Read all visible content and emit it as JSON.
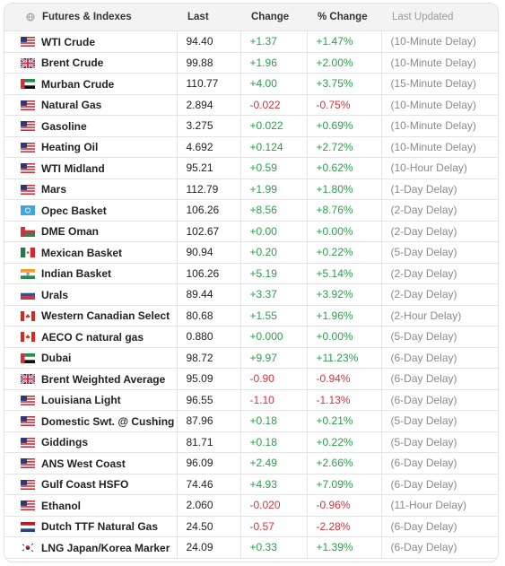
{
  "table": {
    "columns": [
      "Futures & Indexes",
      "Last",
      "Change",
      "% Change",
      "Last Updated"
    ],
    "rows": [
      [
        "WTI Crude",
        "94.40",
        "+1.37",
        "+1.47%",
        "(10-Minute Delay)"
      ],
      [
        "Brent Crude",
        "99.88",
        "+1.96",
        "+2.00%",
        "(10-Minute Delay)"
      ],
      [
        "Murban Crude",
        "110.77",
        "+4.00",
        "+3.75%",
        "(15-Minute Delay)"
      ],
      [
        "Natural Gas",
        "2.894",
        "-0.022",
        "-0.75%",
        "(10-Minute Delay)"
      ],
      [
        "Gasoline",
        "3.275",
        "+0.022",
        "+0.69%",
        "(10-Minute Delay)"
      ],
      [
        "Heating Oil",
        "4.692",
        "+0.124",
        "+2.72%",
        "(10-Minute Delay)"
      ],
      [
        "WTI Midland",
        "95.21",
        "+0.59",
        "+0.62%",
        "(10-Hour Delay)"
      ],
      [
        "Mars",
        "112.79",
        "+1.99",
        "+1.80%",
        "(1-Day Delay)"
      ],
      [
        "Opec Basket",
        "106.26",
        "+8.56",
        "+8.76%",
        "(2-Day Delay)"
      ],
      [
        "DME Oman",
        "102.67",
        "+0.00",
        "+0.00%",
        "(2-Day Delay)"
      ],
      [
        "Mexican Basket",
        "90.94",
        "+0.20",
        "+0.22%",
        "(5-Day Delay)"
      ],
      [
        "Indian Basket",
        "106.26",
        "+5.19",
        "+5.14%",
        "(2-Day Delay)"
      ],
      [
        "Urals",
        "89.44",
        "+3.37",
        "+3.92%",
        "(2-Day Delay)"
      ],
      [
        "Western Canadian Select",
        "80.68",
        "+1.55",
        "+1.96%",
        "(2-Hour Delay)"
      ],
      [
        "AECO C natural gas",
        "0.880",
        "+0.000",
        "+0.00%",
        "(5-Day Delay)"
      ],
      [
        "Dubai",
        "98.72",
        "+9.97",
        "+11.23%",
        "(6-Day Delay)"
      ],
      [
        "Brent Weighted Average",
        "95.09",
        "-0.90",
        "-0.94%",
        "(6-Day Delay)"
      ],
      [
        "Louisiana Light",
        "96.55",
        "-1.10",
        "-1.13%",
        "(6-Day Delay)"
      ],
      [
        "Domestic Swt. @ Cushing",
        "87.96",
        "+0.18",
        "+0.21%",
        "(5-Day Delay)"
      ],
      [
        "Giddings",
        "81.71",
        "+0.18",
        "+0.22%",
        "(5-Day Delay)"
      ],
      [
        "ANS West Coast",
        "96.09",
        "+2.49",
        "+2.66%",
        "(6-Day Delay)"
      ],
      [
        "Gulf Coast HSFO",
        "74.46",
        "+4.93",
        "+7.09%",
        "(6-Day Delay)"
      ],
      [
        "Ethanol",
        "2.060",
        "-0.020",
        "-0.96%",
        "(11-Hour Delay)"
      ],
      [
        "Dutch TTF Natural Gas",
        "24.50",
        "-0.57",
        "-2.28%",
        "(6-Day Delay)"
      ],
      [
        "LNG Japan/Korea Marker",
        "24.09",
        "+0.33",
        "+1.39%",
        "(6-Day Delay)"
      ]
    ]
  }
}
